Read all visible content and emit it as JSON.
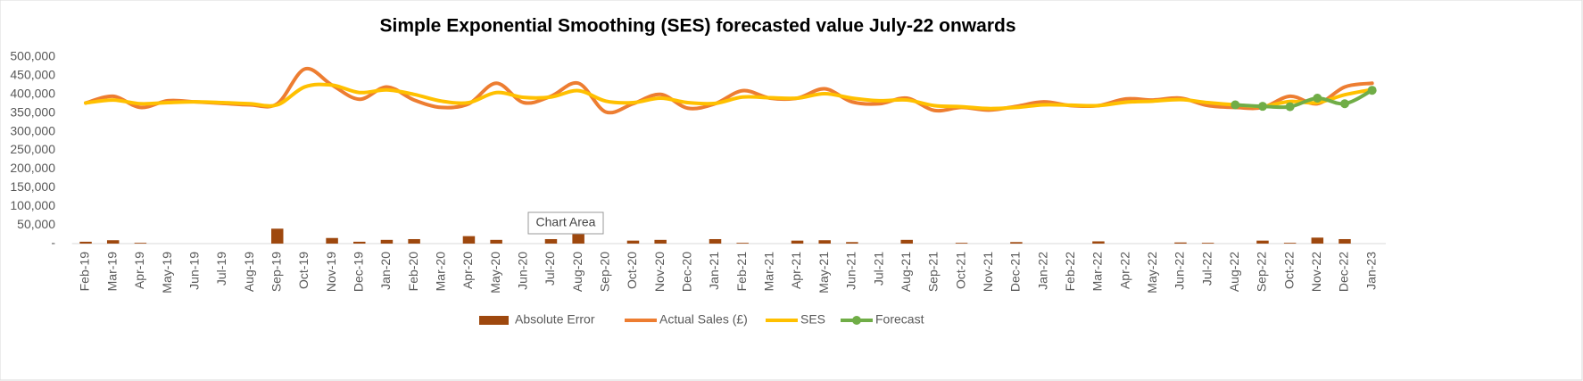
{
  "chart_data": {
    "type": "combo",
    "title": "Simple Exponential Smoothing (SES) forecasted value July-22 onwards",
    "tooltip": "Chart Area",
    "categories": [
      "Feb-19",
      "Mar-19",
      "Apr-19",
      "May-19",
      "Jun-19",
      "Jul-19",
      "Aug-19",
      "Sep-19",
      "Oct-19",
      "Nov-19",
      "Dec-19",
      "Jan-20",
      "Feb-20",
      "Mar-20",
      "Apr-20",
      "May-20",
      "Jun-20",
      "Jul-20",
      "Aug-20",
      "Sep-20",
      "Oct-20",
      "Nov-20",
      "Dec-20",
      "Jan-21",
      "Feb-21",
      "Mar-21",
      "Apr-21",
      "May-21",
      "Jun-21",
      "Jul-21",
      "Aug-21",
      "Sep-21",
      "Oct-21",
      "Nov-21",
      "Dec-21",
      "Jan-22",
      "Feb-22",
      "Mar-22",
      "Apr-22",
      "May-22",
      "Jun-22",
      "Jul-22",
      "Aug-22",
      "Sep-22",
      "Oct-22",
      "Nov-22",
      "Dec-22",
      "Jan-23"
    ],
    "ylim": [
      0,
      500000
    ],
    "yticks": [
      {
        "value": 0,
        "label": "-"
      },
      {
        "value": 50000,
        "label": "50,000"
      },
      {
        "value": 100000,
        "label": "100,000"
      },
      {
        "value": 150000,
        "label": "150,000"
      },
      {
        "value": 200000,
        "label": "200,000"
      },
      {
        "value": 250000,
        "label": "250,000"
      },
      {
        "value": 300000,
        "label": "300,000"
      },
      {
        "value": 350000,
        "label": "350,000"
      },
      {
        "value": 400000,
        "label": "400,000"
      },
      {
        "value": 450000,
        "label": "450,000"
      },
      {
        "value": 500000,
        "label": "500,000"
      }
    ],
    "legend": "bottom",
    "series": [
      {
        "name": "Absolute Error",
        "type": "bar",
        "color": "#9e480e",
        "values": [
          5000,
          9000,
          2000,
          0,
          0,
          0,
          0,
          40000,
          0,
          15000,
          5000,
          10000,
          12000,
          0,
          20000,
          10000,
          0,
          12000,
          30000,
          0,
          8000,
          10000,
          0,
          12000,
          2000,
          0,
          8000,
          9000,
          4000,
          0,
          10000,
          0,
          2000,
          0,
          4000,
          0,
          0,
          6000,
          0,
          0,
          3000,
          2000,
          0,
          8000,
          2000,
          16000,
          12000,
          0
        ]
      },
      {
        "name": "Actual Sales (£)",
        "type": "line",
        "color": "#ed7d31",
        "values": [
          377000,
          395000,
          365000,
          383000,
          380000,
          376000,
          372000,
          375000,
          468000,
          425000,
          387000,
          420000,
          385000,
          365000,
          375000,
          430000,
          378000,
          395000,
          430000,
          353000,
          375000,
          400000,
          363000,
          375000,
          410000,
          390000,
          390000,
          415000,
          380000,
          375000,
          390000,
          357000,
          365000,
          358000,
          368000,
          380000,
          370000,
          370000,
          388000,
          385000,
          390000,
          370000,
          365000,
          365000,
          395000,
          375000,
          420000,
          430000
        ]
      },
      {
        "name": "SES",
        "type": "line",
        "color": "#ffc000",
        "values": [
          377000,
          385000,
          375000,
          378000,
          380000,
          378000,
          375000,
          372000,
          420000,
          425000,
          405000,
          412000,
          400000,
          382000,
          378000,
          405000,
          392000,
          393000,
          410000,
          382000,
          378000,
          390000,
          378000,
          376000,
          393000,
          391000,
          390000,
          402000,
          390000,
          383000,
          385000,
          370000,
          367000,
          362000,
          365000,
          372000,
          371000,
          370000,
          379000,
          382000,
          386000,
          378000,
          372000,
          368000,
          381000,
          378000,
          399000,
          413000
        ]
      },
      {
        "name": "Forecast",
        "type": "line",
        "color": "#70ad47",
        "marker": true,
        "values": [
          null,
          null,
          null,
          null,
          null,
          null,
          null,
          null,
          null,
          null,
          null,
          null,
          null,
          null,
          null,
          null,
          null,
          null,
          null,
          null,
          null,
          null,
          null,
          null,
          null,
          null,
          null,
          null,
          null,
          null,
          null,
          null,
          null,
          null,
          null,
          null,
          null,
          null,
          null,
          null,
          null,
          null,
          372000,
          368000,
          367000,
          390000,
          375000,
          411000
        ]
      }
    ]
  }
}
